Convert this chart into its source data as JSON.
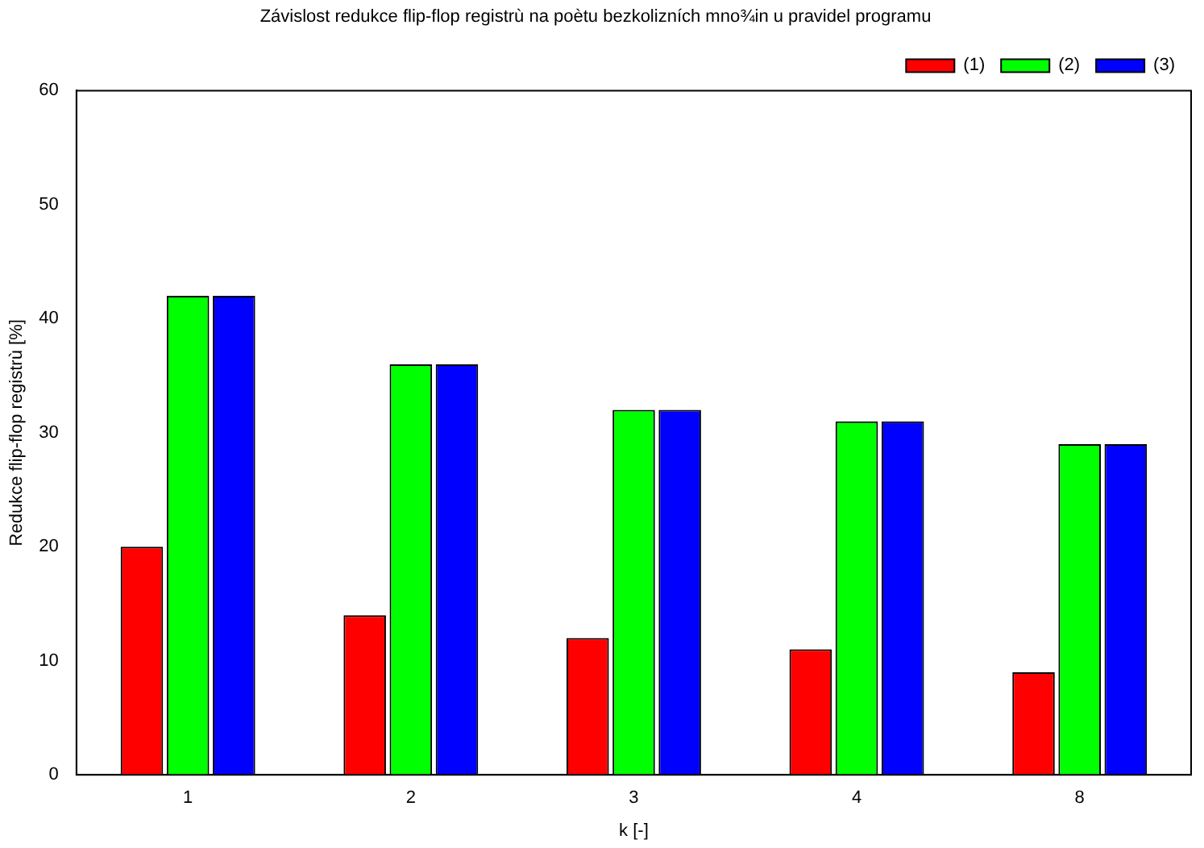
{
  "chart_data": {
    "type": "bar",
    "title": "Závislost redukce flip-flop registrù na poètu bezkolizních mno¾in u pravidel programu",
    "xlabel": "k [-]",
    "ylabel": "Redukce flip-flop registrù [%]",
    "categories": [
      "1",
      "2",
      "3",
      "4",
      "8"
    ],
    "series": [
      {
        "name": "(1)",
        "color": "#ff0000",
        "values": [
          20,
          14,
          12,
          11,
          9
        ]
      },
      {
        "name": "(2)",
        "color": "#00ff00",
        "values": [
          42,
          36,
          32,
          31,
          29
        ]
      },
      {
        "name": "(3)",
        "color": "#0000ff",
        "values": [
          42,
          36,
          32,
          31,
          29
        ]
      }
    ],
    "ylim": [
      0,
      60
    ],
    "yticks": [
      0,
      10,
      20,
      30,
      40,
      50,
      60
    ],
    "grid": false,
    "legend": "top right"
  }
}
